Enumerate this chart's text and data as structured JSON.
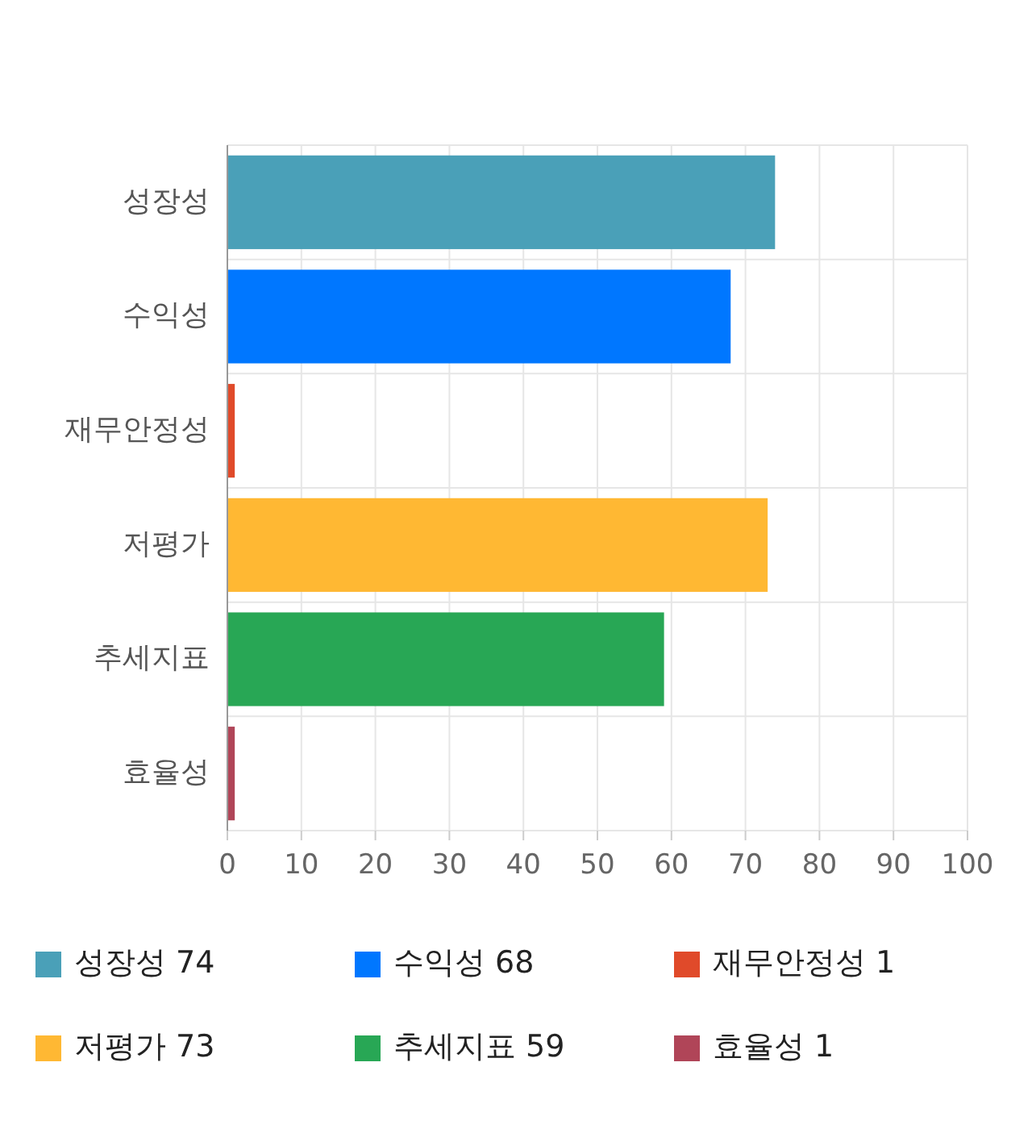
{
  "chart_data": {
    "type": "bar",
    "orientation": "horizontal",
    "stacked": true,
    "categories": [
      "성장성",
      "수익성",
      "재무안정성",
      "저평가",
      "추세지표",
      "효율성"
    ],
    "series": [
      {
        "name": "성장성 74",
        "color": "#4aa0b8",
        "values": [
          74,
          null,
          null,
          null,
          null,
          null
        ]
      },
      {
        "name": "수익성 68",
        "color": "#0077ff",
        "values": [
          null,
          68,
          null,
          null,
          null,
          null
        ]
      },
      {
        "name": "재무안정성 1",
        "color": "#e04a2a",
        "values": [
          null,
          null,
          1,
          null,
          null,
          null
        ]
      },
      {
        "name": "저평가 73",
        "color": "#ffb833",
        "values": [
          null,
          null,
          null,
          73,
          null,
          null
        ]
      },
      {
        "name": "추세지표 59",
        "color": "#28a755",
        "values": [
          null,
          null,
          null,
          null,
          59,
          null
        ]
      },
      {
        "name": "효율성 1",
        "color": "#b04558",
        "values": [
          null,
          null,
          null,
          null,
          null,
          1
        ]
      }
    ],
    "xlim": [
      0,
      100
    ],
    "xticks": [
      0,
      10,
      20,
      30,
      40,
      50,
      60,
      70,
      80,
      90,
      100
    ],
    "grid": true,
    "legend": "bottom"
  }
}
